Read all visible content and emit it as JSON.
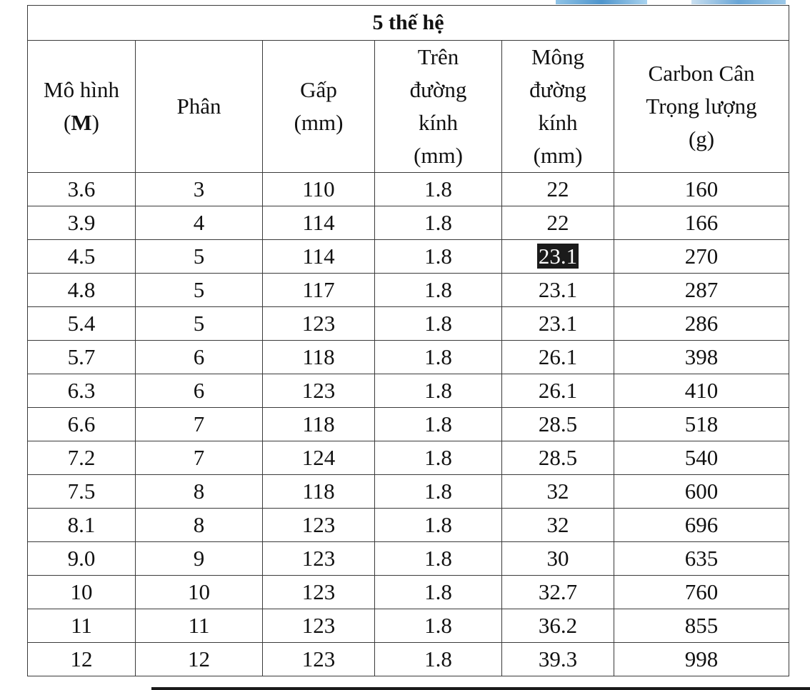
{
  "table": {
    "title": "5 thế hệ",
    "headers": {
      "model_line1": "Mô hình",
      "model_open": "(",
      "model_unit": "M",
      "model_close": ")",
      "sections": "Phân",
      "fold_line1": "Gấp",
      "fold_line2": "(mm)",
      "top_line1": "Trên",
      "top_line2": "đường",
      "top_line3": "kính",
      "top_line4": "(mm)",
      "butt_line1": "Mông",
      "butt_line2": "đường",
      "butt_line3": "kính",
      "butt_line4": "(mm)",
      "weight_line1": "Carbon Cân",
      "weight_line2": "Trọng lượng",
      "weight_line3": "(g)"
    },
    "rows": [
      [
        "3.6",
        "3",
        "110",
        "1.8",
        "22",
        "160"
      ],
      [
        "3.9",
        "4",
        "114",
        "1.8",
        "22",
        "166"
      ],
      [
        "4.5",
        "5",
        "114",
        "1.8",
        "23.1",
        "270"
      ],
      [
        "4.8",
        "5",
        "117",
        "1.8",
        "23.1",
        "287"
      ],
      [
        "5.4",
        "5",
        "123",
        "1.8",
        "23.1",
        "286"
      ],
      [
        "5.7",
        "6",
        "118",
        "1.8",
        "26.1",
        "398"
      ],
      [
        "6.3",
        "6",
        "123",
        "1.8",
        "26.1",
        "410"
      ],
      [
        "6.6",
        "7",
        "118",
        "1.8",
        "28.5",
        "518"
      ],
      [
        "7.2",
        "7",
        "124",
        "1.8",
        "28.5",
        "540"
      ],
      [
        "7.5",
        "8",
        "118",
        "1.8",
        "32",
        "600"
      ],
      [
        "8.1",
        "8",
        "123",
        "1.8",
        "32",
        "696"
      ],
      [
        "9.0",
        "9",
        "123",
        "1.8",
        "30",
        "635"
      ],
      [
        "10",
        "10",
        "123",
        "1.8",
        "32.7",
        "760"
      ],
      [
        "11",
        "11",
        "123",
        "1.8",
        "36.2",
        "855"
      ],
      [
        "12",
        "12",
        "123",
        "1.8",
        "39.3",
        "998"
      ]
    ],
    "highlighted_cell": {
      "row": 2,
      "col": 4
    }
  }
}
